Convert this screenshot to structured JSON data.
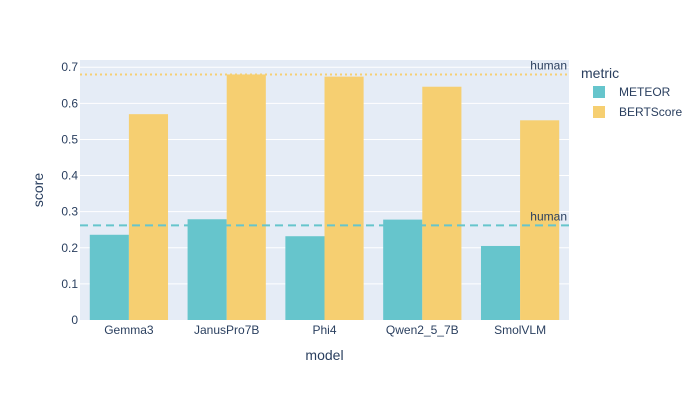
{
  "chart_data": {
    "type": "bar",
    "xlabel": "model",
    "ylabel": "score",
    "legend_title": "metric",
    "legend_position": "right",
    "grid": true,
    "ylim": [
      0,
      0.72
    ],
    "yticks": [
      0,
      0.1,
      0.2,
      0.3,
      0.4,
      0.5,
      0.6,
      0.7
    ],
    "ytick_labels": [
      "0",
      "0.1",
      "0.2",
      "0.3",
      "0.4",
      "0.5",
      "0.6",
      "0.7"
    ],
    "categories": [
      "Gemma3",
      "JanusPro7B",
      "Phi4",
      "Qwen2_5_7B",
      "SmolVLM"
    ],
    "series": [
      {
        "name": "METEOR",
        "color": "#66c5cc",
        "values": [
          0.236,
          0.279,
          0.232,
          0.278,
          0.205
        ]
      },
      {
        "name": "BERTScore",
        "color": "#f6cf71",
        "values": [
          0.57,
          0.68,
          0.674,
          0.646,
          0.553
        ]
      }
    ],
    "reference_lines": [
      {
        "label": "human",
        "value": 0.68,
        "color": "#f6cf71",
        "style": "dotted"
      },
      {
        "label": "human",
        "value": 0.262,
        "color": "#66c5cc",
        "style": "dashed"
      }
    ]
  }
}
